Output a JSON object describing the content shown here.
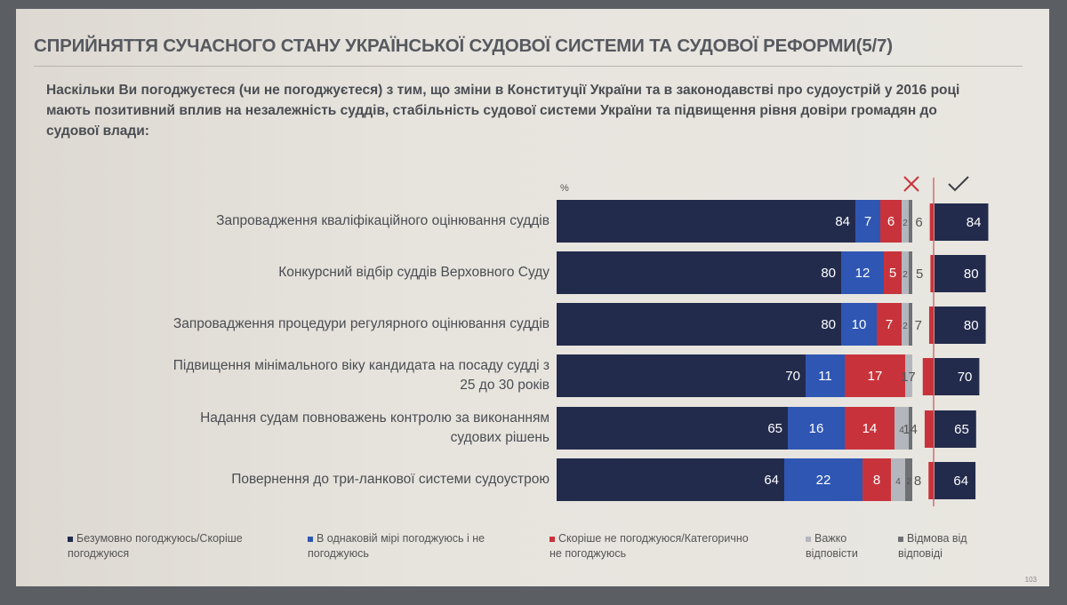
{
  "title": "СПРИЙНЯТТЯ СУЧАСНОГО СТАНУ УКРАЇНСЬКОЇ СУДОВОЇ СИСТЕМИ ТА СУДОВОЇ РЕФОРМИ(5/7)",
  "question": "Наскільки Ви погоджуєтеся (чи не погоджуєтеся) з тим, що зміни в Конституції України та в законодавстві про судоустрій у 2016 році мають позитивний вплив на незалежність суддів, стабільність судової системи України та підвищення рівня довіри громадян до судової влади:",
  "percent_sign": "%",
  "page_number": "103",
  "colors": {
    "c1": "#232b4c",
    "c2": "#2f56b3",
    "c3": "#c8333b",
    "c4": "#b3b6bc",
    "c5": "#6e7074"
  },
  "chart_data": {
    "type": "bar",
    "orientation": "horizontal",
    "stacked": true,
    "unit": "%",
    "categories": [
      "Запровадження кваліфікаційного оцінювання суддів",
      "Конкурсний відбір суддів Верховного Суду",
      "Запровадження процедури регулярного оцінювання суддів",
      "Підвищення мінімального віку кандидата на посаду судді з 25 до 30 років",
      "Надання судам повноважень  контролю за виконанням судових рішень",
      "Повернення до три-ланкової системи судоустрою"
    ],
    "category_lines": [
      [
        "Запровадження кваліфікаційного оцінювання суддів"
      ],
      [
        "Конкурсний відбір суддів Верховного Суду"
      ],
      [
        "Запровадження процедури регулярного оцінювання суддів"
      ],
      [
        "Підвищення мінімального віку кандидата на посаду судді з",
        "25 до 30 років"
      ],
      [
        "Надання судам повноважень  контролю за виконанням",
        "судових рішень"
      ],
      [
        "Повернення до три-ланкової системи судоустрою"
      ]
    ],
    "series": [
      {
        "name": "Безумовно погоджуюсь/Скоріше погоджуюся",
        "legend_lines": [
          "Безумовно погоджуюсь/Скоріше",
          "погоджуюся"
        ],
        "values": [
          84,
          80,
          80,
          70,
          65,
          64
        ],
        "labels": [
          "84",
          "80",
          "80",
          "70",
          "65",
          "64"
        ]
      },
      {
        "name": "В однаковій мірі погоджуюсь і не погоджуюсь",
        "legend_lines": [
          "В однаковій мірі погоджуюсь і не",
          "погоджуюсь"
        ],
        "values": [
          7,
          12,
          10,
          11,
          16,
          22
        ],
        "labels": [
          "7",
          "12",
          "10",
          "11",
          "16",
          "22"
        ]
      },
      {
        "name": "Скоріше не погоджуюся/Категорично не погоджуюсь",
        "legend_lines": [
          "Скоріше не погоджуюся/Категорично",
          "не погоджуюсь"
        ],
        "values": [
          6,
          5,
          7,
          17,
          14,
          8
        ],
        "labels": [
          "6",
          "5",
          "7",
          "17",
          "14",
          "8"
        ]
      },
      {
        "name": "Важко відповісти",
        "legend_lines": [
          "Важко",
          "відповісти"
        ],
        "values": [
          2,
          2,
          2,
          2,
          4,
          4
        ],
        "labels": [
          "2",
          "2",
          "2",
          "",
          "4",
          "4"
        ]
      },
      {
        "name": "Відмова від відповіді",
        "legend_lines": [
          "Відмова від",
          "відповіді"
        ],
        "values": [
          1,
          1,
          1,
          0,
          1,
          2
        ],
        "labels": [
          "",
          "",
          "",
          "",
          "",
          "2"
        ]
      }
    ],
    "summary": {
      "disagree": {
        "icon": "cross-icon",
        "values": [
          6,
          5,
          7,
          17,
          14,
          8
        ]
      },
      "agree": {
        "icon": "check-icon",
        "values": [
          84,
          80,
          80,
          70,
          65,
          64
        ]
      }
    }
  }
}
